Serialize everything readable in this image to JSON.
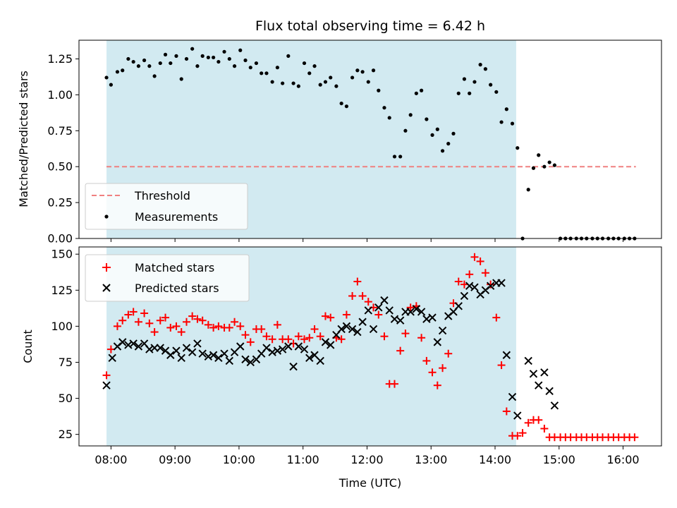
{
  "chart_data": [
    {
      "type": "scatter",
      "title": "Flux total observing time = 6.42 h",
      "xlabel": "",
      "ylabel": "Matched/Predicted stars",
      "ylim": [
        0,
        1.38
      ],
      "yticks": [
        "0.00",
        "0.25",
        "0.50",
        "0.75",
        "1.00",
        "1.25"
      ],
      "ytick_values": [
        0,
        0.25,
        0.5,
        0.75,
        1.0,
        1.25
      ],
      "shaded_span_hours": [
        7.93,
        14.33
      ],
      "shade_color": "#add8e6",
      "threshold": {
        "label": "Threshold",
        "value": 0.5,
        "x_range_hours": [
          7.93,
          16.2
        ],
        "color": "#f08080"
      },
      "legend": [
        "Threshold",
        "Measurements"
      ],
      "legend_position": "lower-left",
      "series": [
        {
          "name": "Measurements",
          "color": "#000000",
          "x_hours": [
            7.93,
            8.0,
            8.1,
            8.18,
            8.27,
            8.35,
            8.43,
            8.52,
            8.6,
            8.68,
            8.77,
            8.85,
            8.93,
            9.02,
            9.1,
            9.18,
            9.27,
            9.35,
            9.43,
            9.52,
            9.6,
            9.68,
            9.77,
            9.85,
            9.93,
            10.02,
            10.1,
            10.18,
            10.27,
            10.35,
            10.43,
            10.52,
            10.6,
            10.68,
            10.77,
            10.85,
            10.93,
            11.02,
            11.1,
            11.18,
            11.27,
            11.35,
            11.43,
            11.52,
            11.6,
            11.68,
            11.77,
            11.85,
            11.93,
            12.02,
            12.1,
            12.18,
            12.27,
            12.35,
            12.43,
            12.52,
            12.6,
            12.68,
            12.77,
            12.85,
            12.93,
            13.02,
            13.1,
            13.18,
            13.27,
            13.35,
            13.43,
            13.52,
            13.6,
            13.68,
            13.77,
            13.85,
            13.93,
            14.02,
            14.1,
            14.18,
            14.27,
            14.35,
            14.43,
            14.52,
            14.6,
            14.68,
            14.77,
            14.85,
            14.93,
            15.02,
            15.1,
            15.18,
            15.27,
            15.35,
            15.43,
            15.52,
            15.6,
            15.68,
            15.77,
            15.85,
            15.93,
            16.02,
            16.1,
            16.18
          ],
          "values": [
            1.12,
            1.07,
            1.16,
            1.17,
            1.25,
            1.23,
            1.2,
            1.24,
            1.2,
            1.13,
            1.22,
            1.28,
            1.22,
            1.27,
            1.11,
            1.25,
            1.32,
            1.2,
            1.27,
            1.26,
            1.26,
            1.23,
            1.3,
            1.25,
            1.2,
            1.31,
            1.24,
            1.19,
            1.22,
            1.15,
            1.15,
            1.09,
            1.19,
            1.08,
            1.27,
            1.08,
            1.06,
            1.22,
            1.15,
            1.2,
            1.07,
            1.09,
            1.12,
            1.06,
            0.94,
            0.92,
            1.12,
            1.17,
            1.16,
            1.09,
            1.17,
            1.03,
            0.91,
            0.84,
            0.57,
            0.57,
            0.75,
            0.86,
            1.01,
            1.03,
            0.83,
            0.72,
            0.76,
            0.61,
            0.66,
            0.73,
            1.01,
            1.11,
            1.01,
            1.09,
            1.21,
            1.18,
            1.07,
            1.02,
            0.81,
            0.9,
            0.8,
            0.63,
            0.0,
            0.34,
            0.49,
            0.58,
            0.5,
            0.53,
            0.51,
            0.0,
            0.0,
            0.0,
            0.0,
            0.0,
            0.0,
            0.0,
            0.0,
            0.0,
            0.0,
            0.0,
            0.0,
            0.0,
            0.0,
            0.0
          ]
        }
      ]
    },
    {
      "type": "scatter",
      "title": "",
      "xlabel": "Time (UTC)",
      "ylabel": "Count",
      "ylim": [
        17,
        155
      ],
      "xlim_hours": [
        7.5,
        16.6
      ],
      "xticks": [
        "08:00",
        "09:00",
        "10:00",
        "11:00",
        "12:00",
        "13:00",
        "14:00",
        "15:00",
        "16:00"
      ],
      "xtick_hours": [
        8,
        9,
        10,
        11,
        12,
        13,
        14,
        15,
        16
      ],
      "yticks": [
        "25",
        "50",
        "75",
        "100",
        "125",
        "150"
      ],
      "ytick_values": [
        25,
        50,
        75,
        100,
        125,
        150
      ],
      "shaded_span_hours": [
        7.93,
        14.33
      ],
      "legend": [
        "Matched stars",
        "Predicted stars"
      ],
      "legend_position": "upper-left",
      "series": [
        {
          "name": "Matched stars",
          "marker": "+",
          "color": "#ff0000",
          "x_hours": [
            7.93,
            8.0,
            8.1,
            8.18,
            8.27,
            8.35,
            8.43,
            8.52,
            8.6,
            8.68,
            8.77,
            8.85,
            8.93,
            9.02,
            9.1,
            9.18,
            9.27,
            9.35,
            9.43,
            9.52,
            9.6,
            9.68,
            9.77,
            9.85,
            9.93,
            10.02,
            10.1,
            10.18,
            10.27,
            10.35,
            10.43,
            10.52,
            10.6,
            10.68,
            10.77,
            10.85,
            10.93,
            11.02,
            11.1,
            11.18,
            11.27,
            11.35,
            11.43,
            11.52,
            11.6,
            11.68,
            11.77,
            11.85,
            11.93,
            12.02,
            12.1,
            12.18,
            12.27,
            12.35,
            12.43,
            12.52,
            12.6,
            12.68,
            12.77,
            12.85,
            12.93,
            13.02,
            13.1,
            13.18,
            13.27,
            13.35,
            13.43,
            13.52,
            13.6,
            13.68,
            13.77,
            13.85,
            13.93,
            14.02,
            14.1,
            14.18,
            14.27,
            14.35,
            14.43,
            14.52,
            14.6,
            14.68,
            14.77,
            14.85,
            14.93,
            15.02,
            15.1,
            15.18,
            15.27,
            15.35,
            15.43,
            15.52,
            15.6,
            15.68,
            15.77,
            15.85,
            15.93,
            16.02,
            16.1,
            16.18
          ],
          "values": [
            66,
            84,
            100,
            104,
            108,
            110,
            103,
            109,
            102,
            96,
            104,
            106,
            99,
            100,
            96,
            103,
            107,
            105,
            104,
            101,
            99,
            100,
            99,
            99,
            103,
            100,
            94,
            89,
            98,
            98,
            93,
            91,
            101,
            91,
            91,
            88,
            93,
            91,
            92,
            98,
            93,
            107,
            106,
            92,
            91,
            108,
            121,
            131,
            121,
            117,
            113,
            108,
            93,
            60,
            60,
            83,
            95,
            113,
            114,
            92,
            76,
            68,
            59,
            71,
            81,
            116,
            131,
            129,
            136,
            148,
            145,
            137,
            129,
            106,
            73,
            41,
            24,
            24,
            26,
            33,
            35,
            35,
            29,
            23,
            23,
            23,
            23,
            23,
            23,
            23,
            23,
            23,
            23,
            23,
            23,
            23,
            23,
            23,
            23,
            23
          ]
        },
        {
          "name": "Predicted stars",
          "marker": "x",
          "color": "#000000",
          "x_hours": [
            7.93,
            8.02,
            8.1,
            8.18,
            8.27,
            8.35,
            8.43,
            8.52,
            8.6,
            8.68,
            8.77,
            8.85,
            8.93,
            9.02,
            9.1,
            9.18,
            9.27,
            9.35,
            9.43,
            9.52,
            9.6,
            9.68,
            9.77,
            9.85,
            9.93,
            10.02,
            10.1,
            10.18,
            10.27,
            10.35,
            10.43,
            10.52,
            10.6,
            10.68,
            10.77,
            10.85,
            10.93,
            11.02,
            11.1,
            11.18,
            11.27,
            11.35,
            11.43,
            11.52,
            11.6,
            11.68,
            11.77,
            11.85,
            11.93,
            12.02,
            12.1,
            12.18,
            12.27,
            12.35,
            12.43,
            12.52,
            12.6,
            12.68,
            12.77,
            12.85,
            12.93,
            13.02,
            13.1,
            13.18,
            13.27,
            13.35,
            13.43,
            13.52,
            13.6,
            13.68,
            13.77,
            13.85,
            13.93,
            14.02,
            14.1,
            14.18,
            14.27,
            14.35,
            14.52,
            14.6,
            14.68,
            14.77,
            14.85,
            14.93
          ],
          "values": [
            59,
            78,
            86,
            89,
            87,
            88,
            86,
            88,
            84,
            85,
            85,
            83,
            80,
            83,
            78,
            85,
            82,
            88,
            81,
            79,
            80,
            78,
            81,
            76,
            82,
            86,
            77,
            75,
            77,
            81,
            85,
            82,
            83,
            84,
            86,
            72,
            86,
            84,
            78,
            80,
            76,
            89,
            87,
            94,
            98,
            100,
            98,
            96,
            103,
            111,
            98,
            113,
            118,
            111,
            105,
            104,
            110,
            110,
            112,
            110,
            105,
            106,
            89,
            97,
            107,
            110,
            114,
            121,
            128,
            127,
            122,
            125,
            128,
            130,
            130,
            80,
            51,
            38,
            76,
            67,
            59,
            68,
            55,
            45
          ]
        }
      ]
    }
  ]
}
